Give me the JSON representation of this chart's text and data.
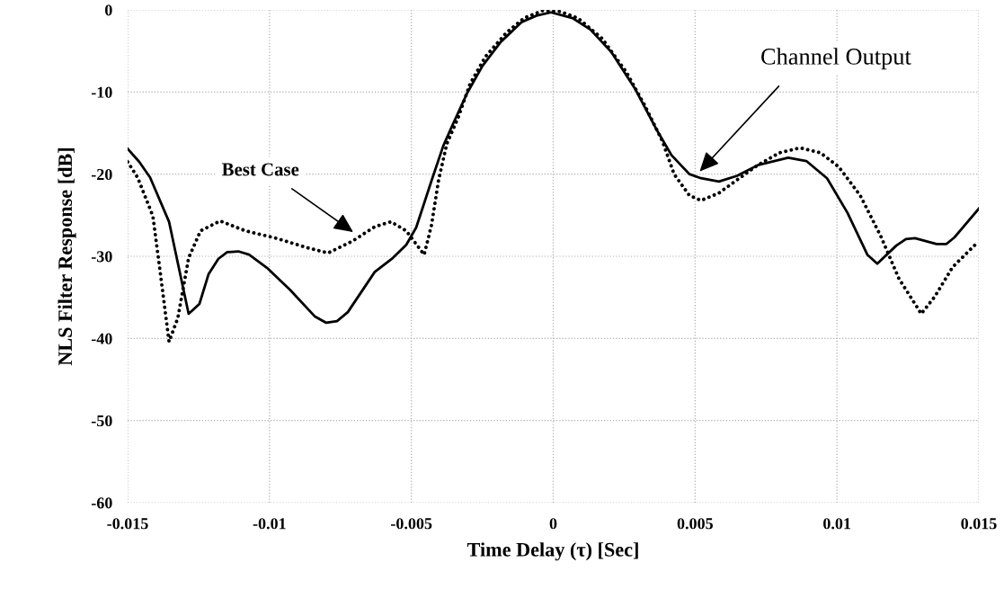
{
  "chart_data": {
    "type": "line",
    "xlabel": "Time Delay (τ) [Sec]",
    "ylabel": "NLS Filter Response [dB]",
    "xlim": [
      -0.015,
      0.015
    ],
    "ylim": [
      -60,
      0
    ],
    "xticks": [
      -0.015,
      -0.01,
      -0.005,
      0,
      0.005,
      0.01,
      0.015
    ],
    "yticks": [
      -60,
      -50,
      -40,
      -30,
      -20,
      -10,
      0
    ],
    "grid": true,
    "marker": "none",
    "series": [
      {
        "color": "#000000",
        "line_style": "solid",
        "x": [
          -0.015,
          -0.01459,
          -0.01421,
          -0.01354,
          -0.01285,
          -0.01247,
          -0.01215,
          -0.0118,
          -0.01149,
          -0.0111,
          -0.01072,
          -0.01009,
          -0.00927,
          -0.00841,
          -0.008,
          -0.00762,
          -0.00724,
          -0.00629,
          -0.00565,
          -0.00518,
          -0.00483,
          -0.00429,
          -0.00388,
          -0.00356,
          -0.00303,
          -0.00249,
          -0.00185,
          -0.00112,
          -0.00059,
          -8e-05,
          0.00068,
          0.00131,
          0.00204,
          0.0029,
          0.00363,
          0.00417,
          0.0048,
          0.00521,
          0.00584,
          0.00648,
          0.00721,
          0.00828,
          0.00892,
          0.00965,
          0.01037,
          0.01107,
          0.01142,
          0.01209,
          0.01243,
          0.01275,
          0.01351,
          0.01386,
          0.01414,
          0.015
        ],
        "values": [
          -16.9,
          -18.5,
          -20.4,
          -25.8,
          -37.0,
          -35.8,
          -32.2,
          -30.3,
          -29.5,
          -29.4,
          -29.8,
          -31.4,
          -34.1,
          -37.3,
          -38.1,
          -37.9,
          -36.8,
          -31.9,
          -30.2,
          -28.6,
          -26.5,
          -20.8,
          -16.6,
          -14.1,
          -10.1,
          -6.8,
          -3.9,
          -1.5,
          -0.7,
          -0.3,
          -1.0,
          -2.4,
          -5.1,
          -9.7,
          -14.5,
          -17.7,
          -20.0,
          -20.5,
          -20.9,
          -20.2,
          -18.9,
          -18.0,
          -18.4,
          -20.5,
          -24.7,
          -29.8,
          -30.9,
          -28.7,
          -27.9,
          -27.8,
          -28.5,
          -28.5,
          -27.7,
          -24.2
        ]
      },
      {
        "color": "#000000",
        "line_style": "dotted",
        "x": [
          -0.015,
          -0.01465,
          -0.01411,
          -0.01386,
          -0.01354,
          -0.01323,
          -0.01285,
          -0.01243,
          -0.01174,
          -0.01085,
          -0.00977,
          -0.00873,
          -0.00794,
          -0.00705,
          -0.00629,
          -0.00572,
          -0.00518,
          -0.00455,
          -0.00429,
          -0.00404,
          -0.00375,
          -0.00334,
          -0.00293,
          -0.00239,
          -0.00166,
          -0.00103,
          -0.00039,
          0.00024,
          0.00087,
          0.00173,
          0.00258,
          0.00322,
          0.00385,
          0.00426,
          0.0048,
          0.00521,
          0.00584,
          0.00648,
          0.00721,
          0.00797,
          0.0087,
          0.00942,
          0.01006,
          0.01082,
          0.01155,
          0.01218,
          0.01297,
          0.01345,
          0.01408,
          0.01487
        ],
        "values": [
          -18.5,
          -20.4,
          -25.1,
          -31.7,
          -40.4,
          -37.5,
          -30.2,
          -26.9,
          -25.7,
          -26.9,
          -27.8,
          -28.9,
          -29.6,
          -28.1,
          -26.4,
          -25.8,
          -26.9,
          -29.8,
          -26.2,
          -20.7,
          -16.3,
          -13.0,
          -9.0,
          -5.7,
          -2.8,
          -1.0,
          -0.1,
          -0.2,
          -1.0,
          -3.5,
          -7.6,
          -11.6,
          -16.0,
          -20.0,
          -22.6,
          -23.2,
          -22.3,
          -20.7,
          -18.9,
          -17.4,
          -16.8,
          -17.4,
          -19.1,
          -22.6,
          -27.6,
          -32.7,
          -37.0,
          -34.9,
          -31.3,
          -28.6
        ]
      }
    ],
    "annotations": [
      "Best Case",
      "Channel Output"
    ]
  }
}
